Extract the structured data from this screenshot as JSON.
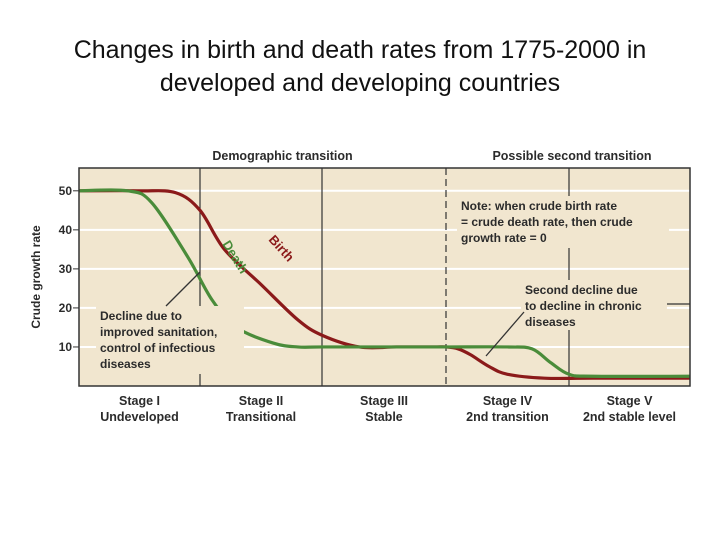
{
  "title_lines": [
    "Changes in birth and death rates from 1775-2000 in",
    "developed and developing countries"
  ],
  "chart_data": {
    "type": "line",
    "title": "",
    "header_left": "Demographic transition",
    "header_right": "Possible second transition",
    "ylabel": "Crude growth rate",
    "ylim": [
      0,
      52
    ],
    "yticks": [
      10,
      20,
      30,
      40,
      50
    ],
    "grid": true,
    "stages": [
      {
        "line1": "Stage I",
        "line2": "Undeveloped"
      },
      {
        "line1": "Stage II",
        "line2": "Transitional"
      },
      {
        "line1": "Stage III",
        "line2": "Stable"
      },
      {
        "line1": "Stage IV",
        "line2": "2nd transition"
      },
      {
        "line1": "Stage V",
        "line2": "2nd stable level"
      }
    ],
    "series": [
      {
        "name": "Birth",
        "color": "#8b1a1a",
        "x": [
          0,
          0.5,
          0.8,
          1.0,
          1.2,
          1.5,
          1.8,
          2.0,
          2.3,
          2.6,
          2.9,
          3.0,
          3.1,
          3.2,
          3.35,
          3.5,
          3.8,
          4.2,
          5.0
        ],
        "y": [
          50,
          50,
          49.5,
          45,
          35,
          26,
          17,
          13,
          10,
          10,
          10,
          10,
          9.5,
          8,
          5,
          3,
          2,
          2,
          2
        ]
      },
      {
        "name": "Death",
        "color": "#4a8c3a",
        "x": [
          0,
          0.4,
          0.6,
          0.9,
          1.1,
          1.3,
          1.6,
          1.8,
          2.0,
          2.5,
          3.0,
          3.5,
          3.7,
          3.85,
          4.0,
          4.2,
          5.0
        ],
        "y": [
          50,
          50,
          47,
          33,
          22,
          15,
          11,
          10,
          10,
          10,
          10,
          10,
          9.5,
          6,
          3,
          2.5,
          2.5
        ]
      }
    ],
    "annotations": [
      {
        "target": "Death",
        "lines": [
          "Decline due to",
          "improved sanitation,",
          "control of infectious",
          "diseases"
        ]
      },
      {
        "target": "Stage IV",
        "lines": [
          "Note: when crude birth rate",
          "= crude death rate, then crude",
          "growth rate = 0"
        ]
      },
      {
        "target": "Stage IV",
        "lines": [
          "Second decline due",
          "to decline in chronic",
          "diseases"
        ]
      }
    ],
    "colors": {
      "plot_bg": "#f1e6cf",
      "grid": "#ffffff",
      "axis": "#333333",
      "birth": "#8b1a1a",
      "death": "#4a8c3a"
    }
  }
}
